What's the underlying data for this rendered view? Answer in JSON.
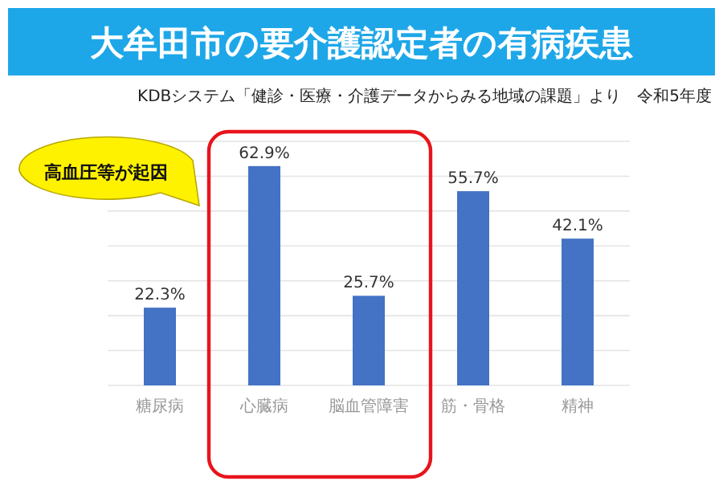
{
  "chart_data": {
    "type": "bar",
    "title": "大牟田市の要介護認定者の有病疾患",
    "subtitle": "KDBシステム「健診・医療・介護データからみる地域の課題」より　令和5年度",
    "annotations": [
      "高血圧等が起因"
    ],
    "categories": [
      "糖尿病",
      "心臓病",
      "脳血管障害",
      "筋・骨格",
      "精神"
    ],
    "values": [
      22.3,
      62.9,
      25.7,
      55.7,
      42.1
    ],
    "value_labels": [
      "22.3%",
      "62.9%",
      "25.7%",
      "55.7%",
      "42.1%"
    ],
    "color": "#4472c4",
    "ylim": [
      0,
      70
    ],
    "yticks": [
      {
        "value": 0,
        "label": null
      },
      {
        "value": 10,
        "label": null
      },
      {
        "value": 20,
        "label": null
      },
      {
        "value": 30,
        "label": null
      },
      {
        "value": 40,
        "label": null
      },
      {
        "value": 50,
        "label": null
      },
      {
        "value": 60,
        "label": null
      },
      {
        "value": 70,
        "label": null
      }
    ],
    "grid": "y"
  }
}
